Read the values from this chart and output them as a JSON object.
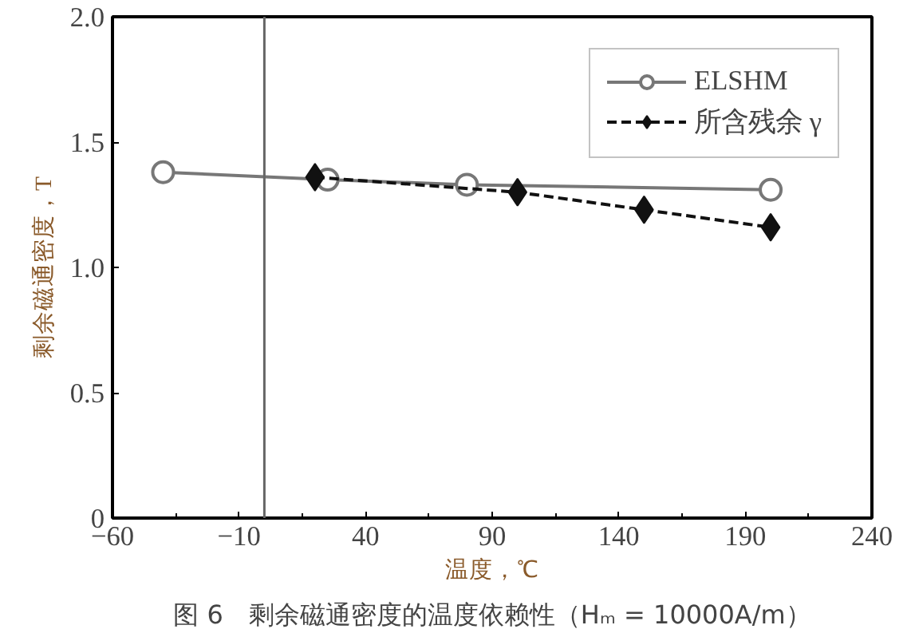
{
  "chart_data": {
    "type": "line",
    "title": "图 6　剩余磁通密度的温度依赖性（Hₘ = 10000A/m）",
    "xlabel": "温度，℃",
    "ylabel": "剩余磁通密度，T",
    "xlim": [
      -60,
      240
    ],
    "xticks": [
      {
        "value": -60,
        "label": "−60"
      },
      {
        "value": -10,
        "label": "−10"
      },
      40,
      90,
      140,
      190,
      240
    ],
    "ylim": [
      0,
      2.0
    ],
    "yticks": [
      {
        "value": 0,
        "label": "0"
      },
      {
        "value": 0.5,
        "label": "0.5"
      },
      {
        "value": 1.0,
        "label": "1.0"
      },
      {
        "value": 1.5,
        "label": "1.5"
      },
      {
        "value": 2.0,
        "label": "2.0"
      }
    ],
    "grid": false,
    "legend": "top right",
    "ref_lines": [
      {
        "axis": "x",
        "value": 0,
        "color": "#666666"
      }
    ],
    "series": [
      {
        "name": "ELSHM",
        "color": "#777777",
        "marker": "circle",
        "line_style": "solid",
        "x": [
          -40,
          25,
          80,
          200
        ],
        "values": [
          1.38,
          1.35,
          1.33,
          1.31
        ]
      },
      {
        "name": "所含残余 γ",
        "color": "#111111",
        "marker": "diamond",
        "line_style": "dashed",
        "x": [
          20,
          100,
          150,
          200
        ],
        "values": [
          1.36,
          1.3,
          1.23,
          1.16
        ]
      }
    ]
  }
}
